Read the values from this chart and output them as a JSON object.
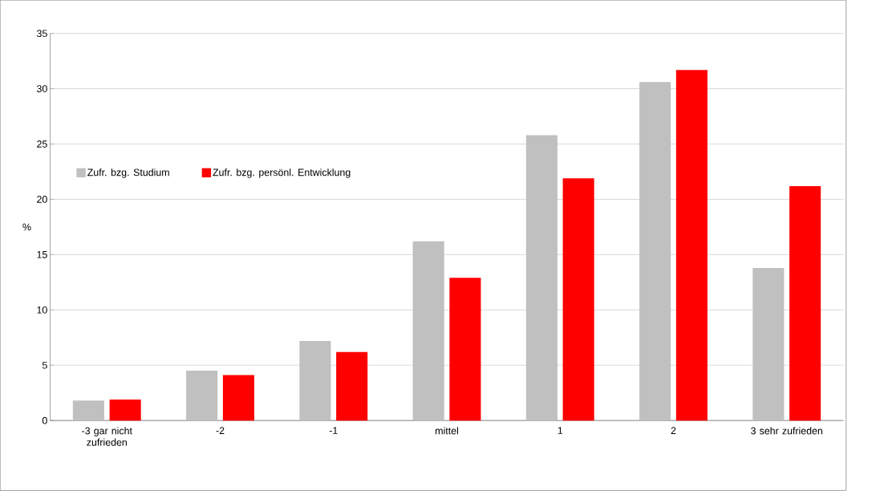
{
  "chart_data": {
    "type": "bar",
    "ylabel": "%",
    "categories": [
      "-3 gar nicht zufrieden",
      "-2",
      "-1",
      "mittel",
      "1",
      "2",
      "3 sehr zufrieden"
    ],
    "series": [
      {
        "name": "Zufr. bzg. Studium",
        "color": "#c0c0c0",
        "values": [
          1.8,
          4.5,
          7.2,
          16.2,
          25.8,
          30.6,
          13.8
        ]
      },
      {
        "name": "Zufr. bzg. persönl. Entwicklung",
        "color": "#ff0000",
        "values": [
          1.9,
          4.1,
          6.2,
          12.9,
          21.9,
          31.7,
          21.2
        ]
      }
    ],
    "ylim": [
      0,
      35
    ],
    "yticks": [
      0,
      5,
      10,
      15,
      20,
      25,
      30,
      35
    ],
    "grid": "y",
    "legend": "left"
  }
}
